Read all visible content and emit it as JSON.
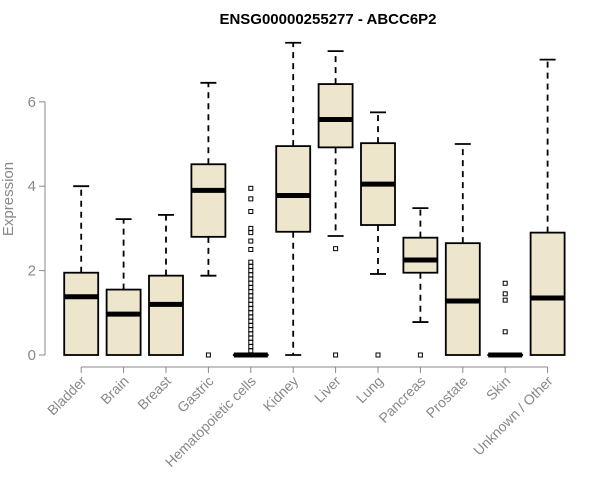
{
  "chart_data": {
    "type": "boxplot",
    "title": "ENSG00000255277 - ABCC6P2",
    "ylabel": "Expression",
    "ylim": [
      0,
      7.4
    ],
    "yticks": [
      0,
      2,
      4,
      6
    ],
    "box_color": "#ede6cc",
    "categories": [
      "Bladder",
      "Brain",
      "Breast",
      "Gastric",
      "Hematopoietic cells",
      "Kidney",
      "Liver",
      "Lung",
      "Pancreas",
      "Prostate",
      "Skin",
      "Unknown / Other"
    ],
    "boxes": [
      {
        "category": "Bladder",
        "min": 0,
        "q1": 0,
        "median": 1.38,
        "q3": 1.95,
        "max": 4.0,
        "outliers": []
      },
      {
        "category": "Brain",
        "min": 0,
        "q1": 0,
        "median": 0.97,
        "q3": 1.55,
        "max": 3.22,
        "outliers": []
      },
      {
        "category": "Breast",
        "min": 0,
        "q1": 0,
        "median": 1.2,
        "q3": 1.88,
        "max": 3.32,
        "outliers": []
      },
      {
        "category": "Gastric",
        "min": 1.88,
        "q1": 2.8,
        "median": 3.9,
        "q3": 4.52,
        "max": 6.45,
        "outliers": [
          0
        ]
      },
      {
        "category": "Hematopoietic cells",
        "min": 0,
        "q1": 0,
        "median": 0,
        "q3": 0,
        "max": 0,
        "outliers": [
          0.1,
          0.2,
          0.3,
          0.4,
          0.5,
          0.6,
          0.7,
          0.8,
          0.9,
          1.0,
          1.1,
          1.2,
          1.3,
          1.4,
          1.5,
          1.6,
          1.7,
          1.8,
          1.9,
          2.0,
          2.1,
          2.2,
          2.5,
          2.7,
          2.9,
          3.0,
          3.4,
          3.7,
          3.95
        ]
      },
      {
        "category": "Kidney",
        "min": 0,
        "q1": 2.92,
        "median": 3.78,
        "q3": 4.95,
        "max": 7.4,
        "outliers": []
      },
      {
        "category": "Liver",
        "min": 2.82,
        "q1": 4.92,
        "median": 5.58,
        "q3": 6.42,
        "max": 7.2,
        "outliers": [
          2.52,
          0
        ]
      },
      {
        "category": "Lung",
        "min": 1.92,
        "q1": 3.08,
        "median": 4.05,
        "q3": 5.02,
        "max": 5.75,
        "outliers": [
          0
        ]
      },
      {
        "category": "Pancreas",
        "min": 0.78,
        "q1": 1.95,
        "median": 2.25,
        "q3": 2.78,
        "max": 3.48,
        "outliers": [
          0
        ]
      },
      {
        "category": "Prostate",
        "min": 0,
        "q1": 0,
        "median": 1.28,
        "q3": 2.65,
        "max": 5.0,
        "outliers": []
      },
      {
        "category": "Skin",
        "min": 0,
        "q1": 0,
        "median": 0,
        "q3": 0,
        "max": 0,
        "outliers": [
          1.7,
          1.45,
          1.3,
          0.55
        ]
      },
      {
        "category": "Unknown / Other",
        "min": 0,
        "q1": 0,
        "median": 1.35,
        "q3": 2.9,
        "max": 7.0,
        "outliers": []
      }
    ]
  }
}
